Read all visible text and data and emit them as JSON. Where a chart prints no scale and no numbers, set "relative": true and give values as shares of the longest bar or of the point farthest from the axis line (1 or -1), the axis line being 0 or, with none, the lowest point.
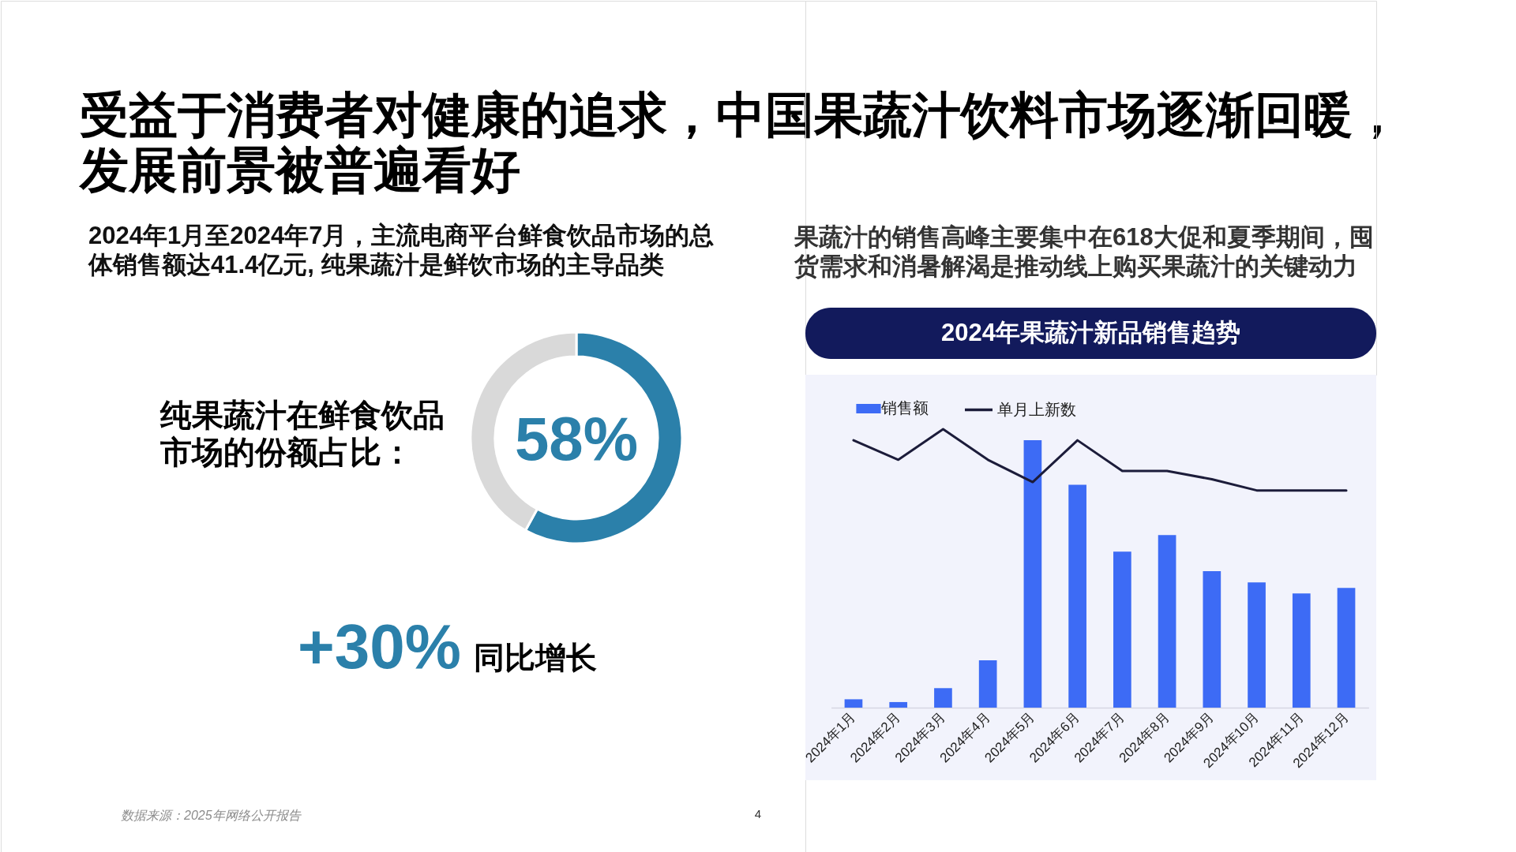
{
  "chart_data": [
    {
      "type": "other",
      "title": "受益于消费者对健康的追求，中国果蔬汁饮料市场逐渐回暖，发展前景被普遍看好",
      "annotations": [
        "数据来源：2025年网络公开报告",
        "4"
      ]
    },
    {
      "type": "donut",
      "subtitle": "2024年1月至2024年7月，主流电商平台鲜食饮品市场的总体销售额达41.4亿元, 纯果蔬汁是鲜饮市场的主导品类",
      "title": "纯果蔬汁在鲜食饮品市场的份额占比：",
      "categories": [
        null,
        null
      ],
      "values": [
        58,
        42
      ],
      "colors": [
        "#2b80aa",
        "#d9d9d9"
      ],
      "value_labels": [
        "58%",
        null
      ]
    },
    {
      "type": "other",
      "annotations": [
        "+30%",
        "同比增长"
      ]
    },
    {
      "type": "bar",
      "subtitle": "果蔬汁的销售高峰主要集中在618大促和夏季期间，囤货需求和消暑解渴是推动线上购买果蔬汁的关键动力",
      "title": "2024年果蔬汁新品销售趋势",
      "categories": [
        "2024年1月",
        "2024年2月",
        "2024年3月",
        "2024年4月",
        "2024年5月",
        "2024年6月",
        "2024年7月",
        "2024年8月",
        "2024年9月",
        "2024年10月",
        "2024年11月",
        "2024年12月"
      ],
      "relative": true,
      "legend": "top left",
      "line_style": "solid",
      "series": [
        {
          "name": "销售额",
          "type": "bar",
          "color": "#3d6bf5",
          "values": [
            0.03,
            0.02,
            0.07,
            0.17,
            0.96,
            0.8,
            0.56,
            0.62,
            0.49,
            0.45,
            0.41,
            0.43
          ]
        },
        {
          "name": "单月上新数",
          "type": "line",
          "color": "#1c1c3a",
          "values": [
            0.96,
            0.89,
            1,
            0.89,
            0.81,
            0.96,
            0.85,
            0.85,
            0.82,
            0.78,
            0.78,
            0.78
          ]
        }
      ]
    }
  ]
}
